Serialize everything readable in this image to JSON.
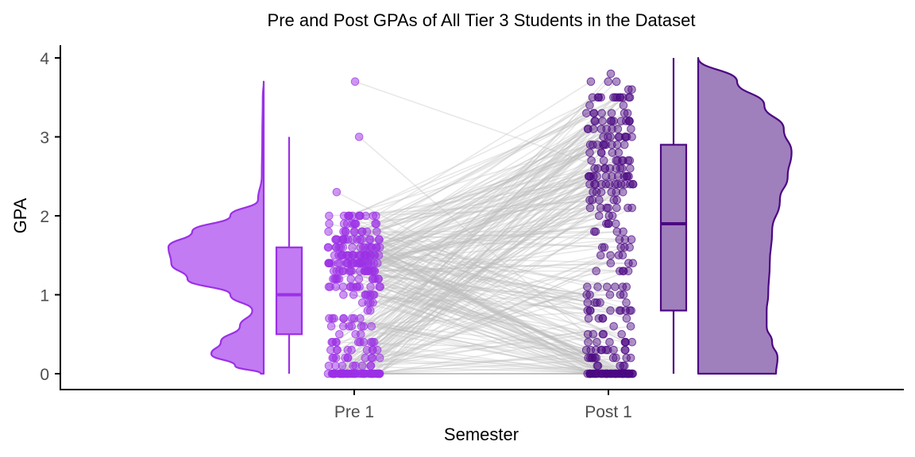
{
  "chart_data": {
    "type": "raincloud",
    "title": "Pre and Post GPAs of All Tier 3 Students in the Dataset",
    "xlabel": "Semester",
    "ylabel": "GPA",
    "ylim": [
      0,
      4
    ],
    "yticks": [
      "0",
      "1",
      "2",
      "3",
      "4"
    ],
    "categories": [
      "Pre 1",
      "Post 1"
    ],
    "grid": false,
    "legend": "none",
    "groups": [
      {
        "category": "Pre 1",
        "color": "#9b30e6",
        "fill": "#c27bf2",
        "box": {
          "min": 0,
          "q1": 0.5,
          "median": 1.0,
          "q3": 1.6,
          "max": 3.0
        },
        "density": [
          [
            0,
            0.03
          ],
          [
            0.1,
            0.3
          ],
          [
            0.25,
            0.55
          ],
          [
            0.4,
            0.45
          ],
          [
            0.6,
            0.25
          ],
          [
            0.8,
            0.12
          ],
          [
            1.0,
            0.35
          ],
          [
            1.2,
            0.8
          ],
          [
            1.4,
            0.97
          ],
          [
            1.6,
            1.0
          ],
          [
            1.8,
            0.75
          ],
          [
            2.0,
            0.35
          ],
          [
            2.2,
            0.06
          ],
          [
            2.5,
            0.02
          ],
          [
            3.0,
            0.015
          ],
          [
            3.5,
            0.01
          ],
          [
            3.7,
            0
          ]
        ],
        "outliers": [
          2.3,
          3.0,
          3.7
        ]
      },
      {
        "category": "Post 1",
        "color": "#4b0882",
        "fill": "#a07fbd",
        "box": {
          "min": 0,
          "q1": 0.8,
          "median": 1.9,
          "q3": 2.9,
          "max": 4.0
        },
        "density": [
          [
            0,
            1.0
          ],
          [
            0.2,
            1.02
          ],
          [
            0.4,
            0.95
          ],
          [
            0.6,
            0.88
          ],
          [
            0.8,
            0.88
          ],
          [
            1.0,
            0.9
          ],
          [
            1.4,
            0.92
          ],
          [
            1.8,
            0.95
          ],
          [
            2.2,
            1.05
          ],
          [
            2.5,
            1.15
          ],
          [
            2.8,
            1.2
          ],
          [
            3.1,
            1.1
          ],
          [
            3.4,
            0.85
          ],
          [
            3.7,
            0.5
          ],
          [
            4.0,
            0.0
          ]
        ]
      }
    ]
  }
}
